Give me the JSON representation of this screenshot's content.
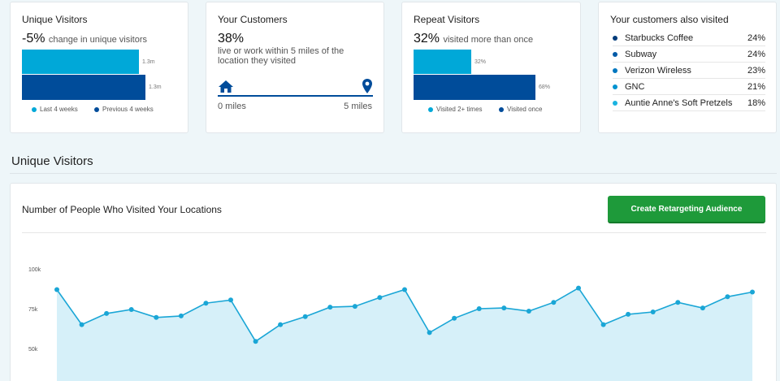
{
  "cards": {
    "unique": {
      "title": "Unique Visitors",
      "headline": "-5%",
      "caption": "change in unique visitors",
      "bars": [
        {
          "label": "1.3m",
          "color": "#00a8d8",
          "fraction": 0.95
        },
        {
          "label": "1.3m",
          "color": "#004c9a",
          "fraction": 1.0
        }
      ],
      "legend": [
        {
          "label": "Last 4 weeks",
          "color": "#00a8d8"
        },
        {
          "label": "Previous 4 weeks",
          "color": "#004c9a"
        }
      ]
    },
    "customers": {
      "title": "Your Customers",
      "headline": "38%",
      "caption": "live or work within 5 miles of the location they visited",
      "start_label": "0 miles",
      "end_label": "5 miles",
      "accent": "#004c9a"
    },
    "repeat": {
      "title": "Repeat Visitors",
      "headline": "32%",
      "caption": "visited more than once",
      "bars": [
        {
          "label": "32%",
          "color": "#00a8d8",
          "value": 0.32
        },
        {
          "label": "68%",
          "color": "#004c9a",
          "value": 0.68
        }
      ],
      "legend": [
        {
          "label": "Visited 2+ times",
          "color": "#00a8d8"
        },
        {
          "label": "Visited once",
          "color": "#004c9a"
        }
      ]
    },
    "also": {
      "title": "Your customers also visited",
      "items": [
        {
          "name": "Starbucks Coffee",
          "pct": "24%",
          "color": "#003b7a"
        },
        {
          "name": "Subway",
          "pct": "24%",
          "color": "#005aa7"
        },
        {
          "name": "Verizon Wireless",
          "pct": "23%",
          "color": "#0077bf"
        },
        {
          "name": "GNC",
          "pct": "21%",
          "color": "#0092d0"
        },
        {
          "name": "Auntie Anne's Soft Pretzels",
          "pct": "18%",
          "color": "#1ab3e0"
        }
      ]
    }
  },
  "section": {
    "title": "Unique Visitors"
  },
  "chart_panel": {
    "heading": "Number of People Who Visited Your Locations",
    "button_label": "Create Retargeting Audience",
    "button_color": "#1e9a3a"
  },
  "chart_data": {
    "type": "area",
    "color": "#1aa6d6",
    "fill": "#d6f0f9",
    "ylim": [
      25,
      100
    ],
    "yticks": [
      {
        "value": 100,
        "label": "100k"
      },
      {
        "value": 75,
        "label": "75k"
      },
      {
        "value": 50,
        "label": "50k"
      }
    ],
    "values": [
      88,
      66,
      73,
      75.5,
      70.5,
      71.5,
      79.5,
      81.5,
      55.5,
      66,
      71,
      77,
      77.5,
      83,
      88,
      61,
      70,
      76,
      76.5,
      74.5,
      80,
      89,
      66,
      72.5,
      74,
      80,
      76.5,
      83.5,
      86.5
    ]
  }
}
